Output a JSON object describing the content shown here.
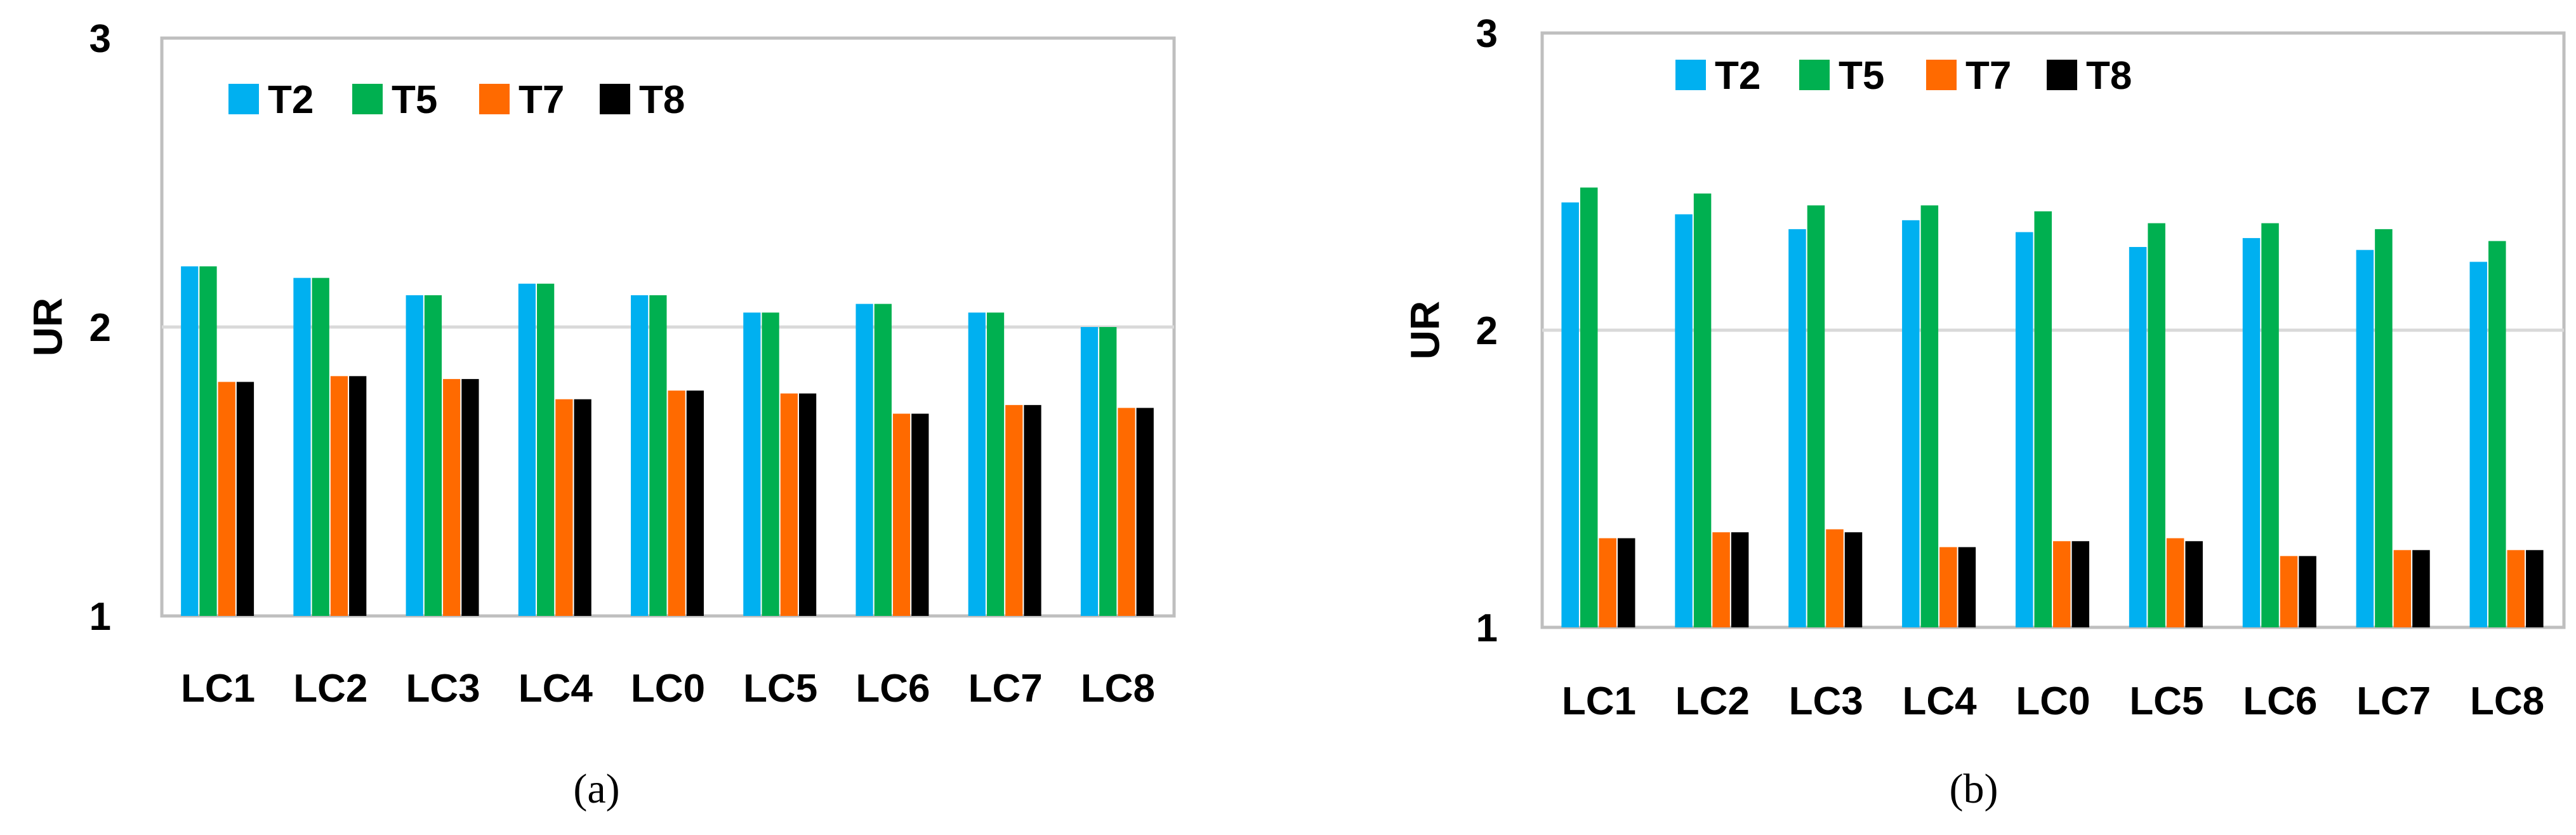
{
  "colors": {
    "T2": "#00B0F0",
    "T5": "#00B050",
    "T7": "#FF6A00",
    "T8": "#000000",
    "grid": "#D9D9D9",
    "axis": "#BFBFBF"
  },
  "chart_data": [
    {
      "type": "bar",
      "panel_label": "(a)",
      "title": "",
      "xlabel": "",
      "ylabel": "UR",
      "ylim": [
        1,
        3
      ],
      "yticks": [
        "1",
        "2",
        "3"
      ],
      "grid": true,
      "legend_position": "top-left",
      "categories": [
        "LC1",
        "LC2",
        "LC3",
        "LC4",
        "LC0",
        "LC5",
        "LC6",
        "LC7",
        "LC8"
      ],
      "series": [
        {
          "name": "T2",
          "values": [
            2.21,
            2.17,
            2.11,
            2.15,
            2.11,
            2.05,
            2.08,
            2.05,
            2.0
          ]
        },
        {
          "name": "T5",
          "values": [
            2.21,
            2.17,
            2.11,
            2.15,
            2.11,
            2.05,
            2.08,
            2.05,
            2.0
          ]
        },
        {
          "name": "T7",
          "values": [
            1.81,
            1.83,
            1.82,
            1.75,
            1.78,
            1.77,
            1.7,
            1.73,
            1.72
          ]
        },
        {
          "name": "T8",
          "values": [
            1.81,
            1.83,
            1.82,
            1.75,
            1.78,
            1.77,
            1.7,
            1.73,
            1.72
          ]
        }
      ]
    },
    {
      "type": "bar",
      "panel_label": "(b)",
      "title": "",
      "xlabel": "",
      "ylabel": "UR",
      "ylim": [
        1,
        3
      ],
      "yticks": [
        "1",
        "2",
        "3"
      ],
      "grid": true,
      "legend_position": "top-left",
      "categories": [
        "LC1",
        "LC2",
        "LC3",
        "LC4",
        "LC0",
        "LC5",
        "LC6",
        "LC7",
        "LC8"
      ],
      "series": [
        {
          "name": "T2",
          "values": [
            2.43,
            2.39,
            2.34,
            2.37,
            2.33,
            2.28,
            2.31,
            2.27,
            2.23
          ]
        },
        {
          "name": "T5",
          "values": [
            2.48,
            2.46,
            2.42,
            2.42,
            2.4,
            2.36,
            2.36,
            2.34,
            2.3
          ]
        },
        {
          "name": "T7",
          "values": [
            1.3,
            1.32,
            1.33,
            1.27,
            1.29,
            1.3,
            1.24,
            1.26,
            1.26
          ]
        },
        {
          "name": "T8",
          "values": [
            1.3,
            1.32,
            1.32,
            1.27,
            1.29,
            1.29,
            1.24,
            1.26,
            1.26
          ]
        }
      ]
    }
  ]
}
